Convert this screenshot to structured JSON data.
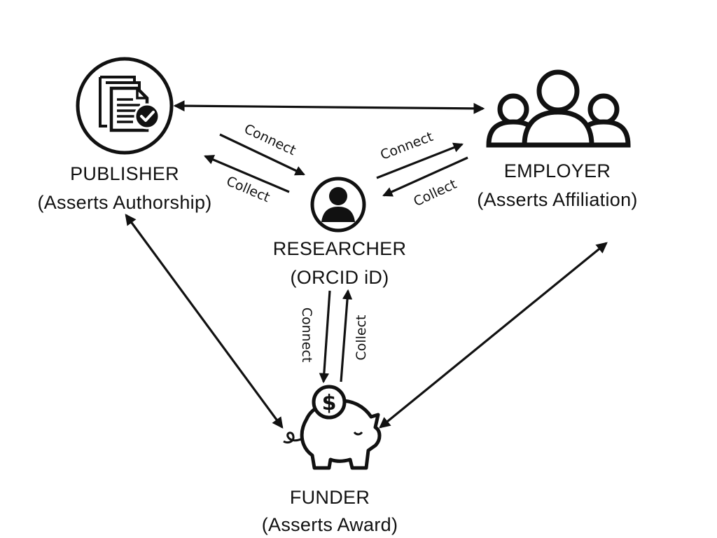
{
  "nodes": {
    "publisher": {
      "name": "PUBLISHER",
      "role": "(Asserts Authorship)",
      "icon": "document-check-icon"
    },
    "employer": {
      "name": "EMPLOYER",
      "role": "(Asserts Affiliation)",
      "icon": "people-group-icon"
    },
    "researcher": {
      "name": "RESEARCHER",
      "role": "(ORCID iD)",
      "icon": "person-avatar-icon"
    },
    "funder": {
      "name": "FUNDER",
      "role": "(Asserts Award)",
      "icon": "piggy-bank-dollar-icon"
    }
  },
  "edges": {
    "publisher_researcher": {
      "connect": "Connect",
      "collect": "Collect"
    },
    "employer_researcher": {
      "connect": "Connect",
      "collect": "Collect"
    },
    "funder_researcher": {
      "connect": "Connect",
      "collect": "Collect"
    }
  },
  "colors": {
    "ink": "#111111",
    "background": "#ffffff"
  }
}
